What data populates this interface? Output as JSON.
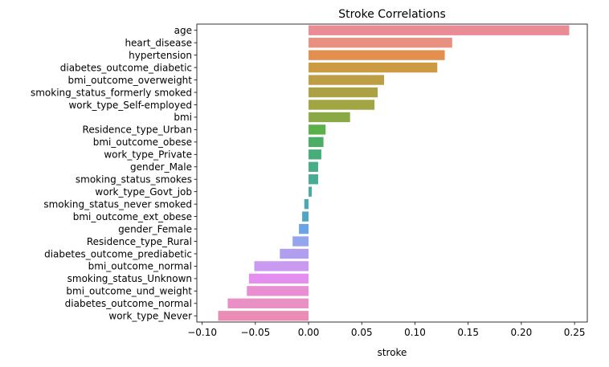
{
  "chart_data": {
    "type": "bar",
    "orientation": "horizontal",
    "title": "Stroke Correlations",
    "xlabel": "stroke",
    "ylabel": "",
    "xlim": [
      -0.105,
      0.262
    ],
    "xticks": [
      -0.1,
      -0.05,
      0.0,
      0.05,
      0.1,
      0.15,
      0.2,
      0.25
    ],
    "xtick_labels": [
      "−0.10",
      "−0.05",
      "0.00",
      "0.05",
      "0.10",
      "0.15",
      "0.20",
      "0.25"
    ],
    "grid": false,
    "legend": "none",
    "categories": [
      "age",
      "heart_disease",
      "hypertension",
      "diabetes_outcome_diabetic",
      "bmi_outcome_overweight",
      "smoking_status_formerly smoked",
      "work_type_Self-employed",
      "bmi",
      "Residence_type_Urban",
      "bmi_outcome_obese",
      "work_type_Private",
      "gender_Male",
      "smoking_status_smokes",
      "work_type_Govt_job",
      "smoking_status_never smoked",
      "bmi_outcome_ext_obese",
      "gender_Female",
      "Residence_type_Rural",
      "diabetes_outcome_prediabetic",
      "bmi_outcome_normal",
      "smoking_status_Unknown",
      "bmi_outcome_und_weight",
      "diabetes_outcome_normal",
      "work_type_Never"
    ],
    "values": [
      0.245,
      0.135,
      0.128,
      0.121,
      0.071,
      0.065,
      0.062,
      0.039,
      0.016,
      0.014,
      0.012,
      0.009,
      0.009,
      0.003,
      -0.004,
      -0.006,
      -0.009,
      -0.015,
      -0.027,
      -0.051,
      -0.056,
      -0.058,
      -0.076,
      -0.085
    ],
    "colors": [
      "#ea8c96",
      "#e99080",
      "#e3904f",
      "#cc9a43",
      "#be9e44",
      "#aca143",
      "#a1a543",
      "#8aa946",
      "#5cb049",
      "#4aaf64",
      "#47ae7b",
      "#47ad88",
      "#48ac94",
      "#4aaba3",
      "#4ca8b2",
      "#52a5c1",
      "#6aa3e6",
      "#95a5ed",
      "#b19eee",
      "#c99af0",
      "#e48eef",
      "#e88ed1",
      "#e990c5",
      "#ea8cb4"
    ]
  }
}
